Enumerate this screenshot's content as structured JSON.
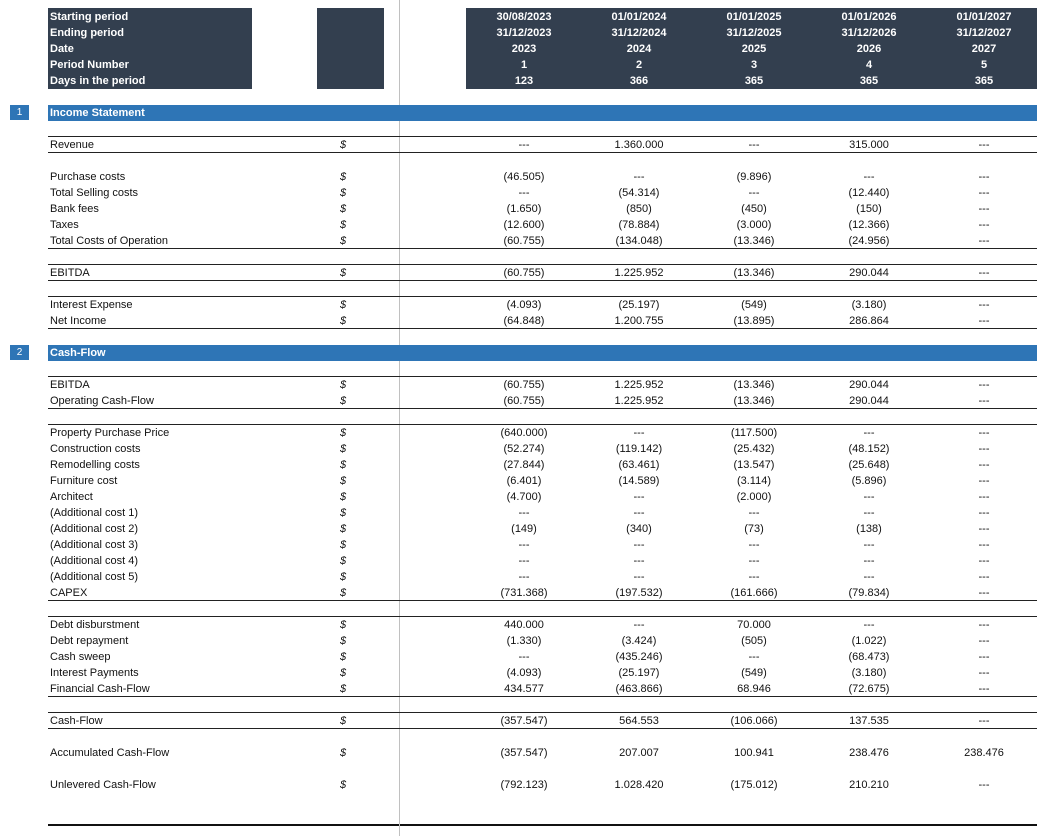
{
  "header": {
    "labels": [
      "Starting period",
      "Ending period",
      "Date",
      "Period Number",
      "Days in the period"
    ],
    "periods": [
      {
        "start": "30/08/2023",
        "end": "31/12/2023",
        "year": "2023",
        "number": "1",
        "days": "123"
      },
      {
        "start": "01/01/2024",
        "end": "31/12/2024",
        "year": "2024",
        "number": "2",
        "days": "366"
      },
      {
        "start": "01/01/2025",
        "end": "31/12/2025",
        "year": "2025",
        "number": "3",
        "days": "365"
      },
      {
        "start": "01/01/2026",
        "end": "31/12/2026",
        "year": "2026",
        "number": "4",
        "days": "365"
      },
      {
        "start": "01/01/2027",
        "end": "31/12/2027",
        "year": "2027",
        "number": "5",
        "days": "365"
      }
    ]
  },
  "colors": {
    "header_bg": "#333f4f",
    "section_bg": "#2e75b6"
  },
  "sections": [
    {
      "number": "1",
      "title": "Income Statement",
      "rows": [
        {
          "label": "Revenue",
          "unit": "$",
          "values": [
            "---",
            "1.360.000",
            "---",
            "315.000",
            "---"
          ]
        },
        {
          "label": "Purchase costs",
          "unit": "$",
          "values": [
            "(46.505)",
            "---",
            "(9.896)",
            "---",
            "---"
          ]
        },
        {
          "label": "Total Selling costs",
          "unit": "$",
          "values": [
            "---",
            "(54.314)",
            "---",
            "(12.440)",
            "---"
          ]
        },
        {
          "label": "Bank fees",
          "unit": "$",
          "values": [
            "(1.650)",
            "(850)",
            "(450)",
            "(150)",
            "---"
          ]
        },
        {
          "label": "Taxes",
          "unit": "$",
          "values": [
            "(12.600)",
            "(78.884)",
            "(3.000)",
            "(12.366)",
            "---"
          ]
        },
        {
          "label": "Total Costs of Operation",
          "unit": "$",
          "values": [
            "(60.755)",
            "(134.048)",
            "(13.346)",
            "(24.956)",
            "---"
          ]
        },
        {
          "label": "EBITDA",
          "unit": "$",
          "values": [
            "(60.755)",
            "1.225.952",
            "(13.346)",
            "290.044",
            "---"
          ]
        },
        {
          "label": "Interest Expense",
          "unit": "$",
          "values": [
            "(4.093)",
            "(25.197)",
            "(549)",
            "(3.180)",
            "---"
          ]
        },
        {
          "label": "Net Income",
          "unit": "$",
          "values": [
            "(64.848)",
            "1.200.755",
            "(13.895)",
            "286.864",
            "---"
          ]
        }
      ]
    },
    {
      "number": "2",
      "title": "Cash-Flow",
      "rows": [
        {
          "label": "EBITDA",
          "unit": "$",
          "values": [
            "(60.755)",
            "1.225.952",
            "(13.346)",
            "290.044",
            "---"
          ]
        },
        {
          "label": "Operating Cash-Flow",
          "unit": "$",
          "values": [
            "(60.755)",
            "1.225.952",
            "(13.346)",
            "290.044",
            "---"
          ]
        },
        {
          "label": "Property Purchase Price",
          "unit": "$",
          "values": [
            "(640.000)",
            "---",
            "(117.500)",
            "---",
            "---"
          ]
        },
        {
          "label": "Construction costs",
          "unit": "$",
          "values": [
            "(52.274)",
            "(119.142)",
            "(25.432)",
            "(48.152)",
            "---"
          ]
        },
        {
          "label": "Remodelling costs",
          "unit": "$",
          "values": [
            "(27.844)",
            "(63.461)",
            "(13.547)",
            "(25.648)",
            "---"
          ]
        },
        {
          "label": "Furniture cost",
          "unit": "$",
          "values": [
            "(6.401)",
            "(14.589)",
            "(3.114)",
            "(5.896)",
            "---"
          ]
        },
        {
          "label": "Architect",
          "unit": "$",
          "values": [
            "(4.700)",
            "---",
            "(2.000)",
            "---",
            "---"
          ]
        },
        {
          "label": "(Additional cost 1)",
          "unit": "$",
          "values": [
            "---",
            "---",
            "---",
            "---",
            "---"
          ]
        },
        {
          "label": "(Additional cost 2)",
          "unit": "$",
          "values": [
            "(149)",
            "(340)",
            "(73)",
            "(138)",
            "---"
          ]
        },
        {
          "label": "(Additional cost 3)",
          "unit": "$",
          "values": [
            "---",
            "---",
            "---",
            "---",
            "---"
          ]
        },
        {
          "label": "(Additional cost 4)",
          "unit": "$",
          "values": [
            "---",
            "---",
            "---",
            "---",
            "---"
          ]
        },
        {
          "label": "(Additional cost 5)",
          "unit": "$",
          "values": [
            "---",
            "---",
            "---",
            "---",
            "---"
          ]
        },
        {
          "label": "CAPEX",
          "unit": "$",
          "values": [
            "(731.368)",
            "(197.532)",
            "(161.666)",
            "(79.834)",
            "---"
          ]
        },
        {
          "label": "Debt disburstment",
          "unit": "$",
          "values": [
            "440.000",
            "---",
            "70.000",
            "---",
            "---"
          ]
        },
        {
          "label": "Debt repayment",
          "unit": "$",
          "values": [
            "(1.330)",
            "(3.424)",
            "(505)",
            "(1.022)",
            "---"
          ]
        },
        {
          "label": "Cash sweep",
          "unit": "$",
          "values": [
            "---",
            "(435.246)",
            "---",
            "(68.473)",
            "---"
          ]
        },
        {
          "label": "Interest Payments",
          "unit": "$",
          "values": [
            "(4.093)",
            "(25.197)",
            "(549)",
            "(3.180)",
            "---"
          ]
        },
        {
          "label": "Financial Cash-Flow",
          "unit": "$",
          "values": [
            "434.577",
            "(463.866)",
            "68.946",
            "(72.675)",
            "---"
          ]
        },
        {
          "label": "Cash-Flow",
          "unit": "$",
          "values": [
            "(357.547)",
            "564.553",
            "(106.066)",
            "137.535",
            "---"
          ]
        },
        {
          "label": "Accumulated Cash-Flow",
          "unit": "$",
          "values": [
            "(357.547)",
            "207.007",
            "100.941",
            "238.476",
            "238.476"
          ]
        },
        {
          "label": "Unlevered Cash-Flow",
          "unit": "$",
          "values": [
            "(792.123)",
            "1.028.420",
            "(175.012)",
            "210.210",
            "---"
          ]
        }
      ]
    }
  ]
}
